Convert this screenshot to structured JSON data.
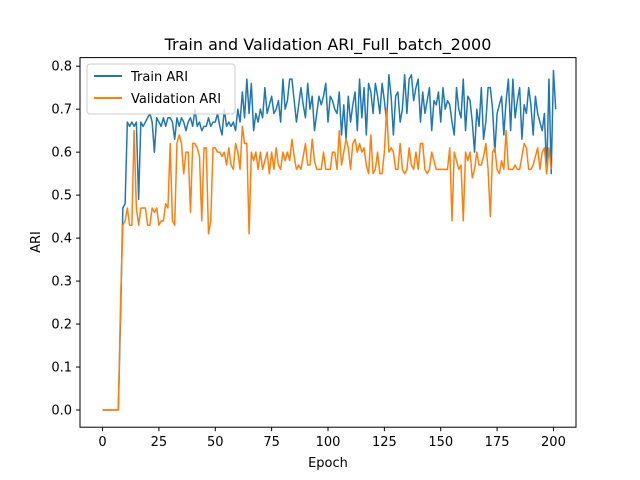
{
  "chart_data": {
    "type": "line",
    "title": "Train and Validation ARI_Full_batch_2000",
    "xlabel": "Epoch",
    "ylabel": "ARI",
    "xlim": [
      -10,
      210
    ],
    "ylim": [
      -0.04,
      0.82
    ],
    "xticks": [
      0,
      25,
      50,
      75,
      100,
      125,
      150,
      175,
      200
    ],
    "yticks": [
      0.0,
      0.1,
      0.2,
      0.3,
      0.4,
      0.5,
      0.6,
      0.7,
      0.8
    ],
    "grid": false,
    "legend_position": "top-left",
    "colors": {
      "train": "#1f77b4",
      "validation": "#ff7f0e"
    },
    "series": [
      {
        "name": "Train ARI",
        "values": [
          0.0,
          0.0,
          0.0,
          0.0,
          0.0,
          0.0,
          0.0,
          0.0,
          0.22,
          0.47,
          0.48,
          0.67,
          0.66,
          0.67,
          0.66,
          0.67,
          0.49,
          0.67,
          0.66,
          0.67,
          0.68,
          0.69,
          0.67,
          0.6,
          0.68,
          0.67,
          0.66,
          0.68,
          0.66,
          0.68,
          0.68,
          0.67,
          0.63,
          0.68,
          0.66,
          0.68,
          0.67,
          0.65,
          0.67,
          0.68,
          0.66,
          0.7,
          0.66,
          0.67,
          0.65,
          0.66,
          0.66,
          0.68,
          0.66,
          0.67,
          0.67,
          0.69,
          0.66,
          0.64,
          0.7,
          0.66,
          0.67,
          0.66,
          0.67,
          0.65,
          0.7,
          0.67,
          0.74,
          0.68,
          0.77,
          0.69,
          0.76,
          0.65,
          0.69,
          0.67,
          0.7,
          0.68,
          0.75,
          0.69,
          0.71,
          0.73,
          0.69,
          0.7,
          0.72,
          0.67,
          0.77,
          0.7,
          0.72,
          0.77,
          0.77,
          0.72,
          0.67,
          0.71,
          0.75,
          0.71,
          0.68,
          0.76,
          0.7,
          0.73,
          0.65,
          0.69,
          0.73,
          0.71,
          0.73,
          0.76,
          0.67,
          0.73,
          0.72,
          0.7,
          0.69,
          0.74,
          0.64,
          0.71,
          0.63,
          0.73,
          0.67,
          0.71,
          0.74,
          0.65,
          0.77,
          0.68,
          0.75,
          0.64,
          0.76,
          0.74,
          0.69,
          0.76,
          0.73,
          0.69,
          0.76,
          0.72,
          0.67,
          0.78,
          0.73,
          0.64,
          0.73,
          0.74,
          0.67,
          0.7,
          0.78,
          0.69,
          0.77,
          0.78,
          0.72,
          0.75,
          0.77,
          0.67,
          0.74,
          0.69,
          0.72,
          0.75,
          0.65,
          0.72,
          0.71,
          0.74,
          0.67,
          0.75,
          0.7,
          0.72,
          0.71,
          0.67,
          0.64,
          0.75,
          0.7,
          0.68,
          0.77,
          0.65,
          0.73,
          0.72,
          0.67,
          0.6,
          0.7,
          0.66,
          0.75,
          0.63,
          0.67,
          0.75,
          0.75,
          0.7,
          0.6,
          0.69,
          0.71,
          0.73,
          0.64,
          0.72,
          0.77,
          0.65,
          0.77,
          0.68,
          0.72,
          0.75,
          0.63,
          0.71,
          0.69,
          0.75,
          0.71,
          0.64,
          0.73,
          0.69,
          0.67,
          0.65,
          0.69,
          0.55,
          0.77,
          0.55,
          0.79,
          0.7
        ]
      },
      {
        "name": "Validation ARI",
        "values": [
          0.0,
          0.0,
          0.0,
          0.0,
          0.0,
          0.0,
          0.0,
          0.0,
          0.25,
          0.43,
          0.44,
          0.47,
          0.43,
          0.43,
          0.65,
          0.47,
          0.43,
          0.47,
          0.47,
          0.47,
          0.43,
          0.43,
          0.47,
          0.46,
          0.47,
          0.43,
          0.44,
          0.44,
          0.48,
          0.47,
          0.62,
          0.44,
          0.43,
          0.62,
          0.64,
          0.62,
          0.55,
          0.6,
          0.6,
          0.46,
          0.62,
          0.62,
          0.61,
          0.59,
          0.44,
          0.61,
          0.61,
          0.41,
          0.44,
          0.61,
          0.61,
          0.6,
          0.6,
          0.59,
          0.6,
          0.57,
          0.61,
          0.57,
          0.56,
          0.62,
          0.6,
          0.56,
          0.66,
          0.62,
          0.62,
          0.41,
          0.6,
          0.58,
          0.6,
          0.56,
          0.6,
          0.56,
          0.58,
          0.6,
          0.55,
          0.6,
          0.56,
          0.61,
          0.57,
          0.56,
          0.6,
          0.58,
          0.6,
          0.58,
          0.63,
          0.59,
          0.56,
          0.57,
          0.56,
          0.59,
          0.62,
          0.57,
          0.57,
          0.63,
          0.58,
          0.56,
          0.56,
          0.56,
          0.6,
          0.56,
          0.56,
          0.56,
          0.6,
          0.6,
          0.56,
          0.65,
          0.57,
          0.6,
          0.63,
          0.61,
          0.56,
          0.62,
          0.63,
          0.6,
          0.62,
          0.6,
          0.61,
          0.57,
          0.55,
          0.64,
          0.55,
          0.56,
          0.6,
          0.55,
          0.55,
          0.6,
          0.7,
          0.6,
          0.61,
          0.6,
          0.56,
          0.56,
          0.62,
          0.56,
          0.55,
          0.56,
          0.61,
          0.57,
          0.56,
          0.6,
          0.56,
          0.62,
          0.62,
          0.56,
          0.55,
          0.56,
          0.6,
          0.58,
          0.56,
          0.56,
          0.56,
          0.56,
          0.56,
          0.56,
          0.61,
          0.44,
          0.6,
          0.58,
          0.56,
          0.57,
          0.44,
          0.6,
          0.58,
          0.6,
          0.54,
          0.56,
          0.6,
          0.57,
          0.57,
          0.59,
          0.62,
          0.56,
          0.45,
          0.6,
          0.61,
          0.56,
          0.55,
          0.58,
          0.56,
          0.65,
          0.56,
          0.56,
          0.56,
          0.57,
          0.56,
          0.56,
          0.59,
          0.62,
          0.61,
          0.56,
          0.56,
          0.57,
          0.59,
          0.61,
          0.56,
          0.6,
          0.61,
          0.55,
          0.61,
          0.56
        ]
      }
    ]
  }
}
